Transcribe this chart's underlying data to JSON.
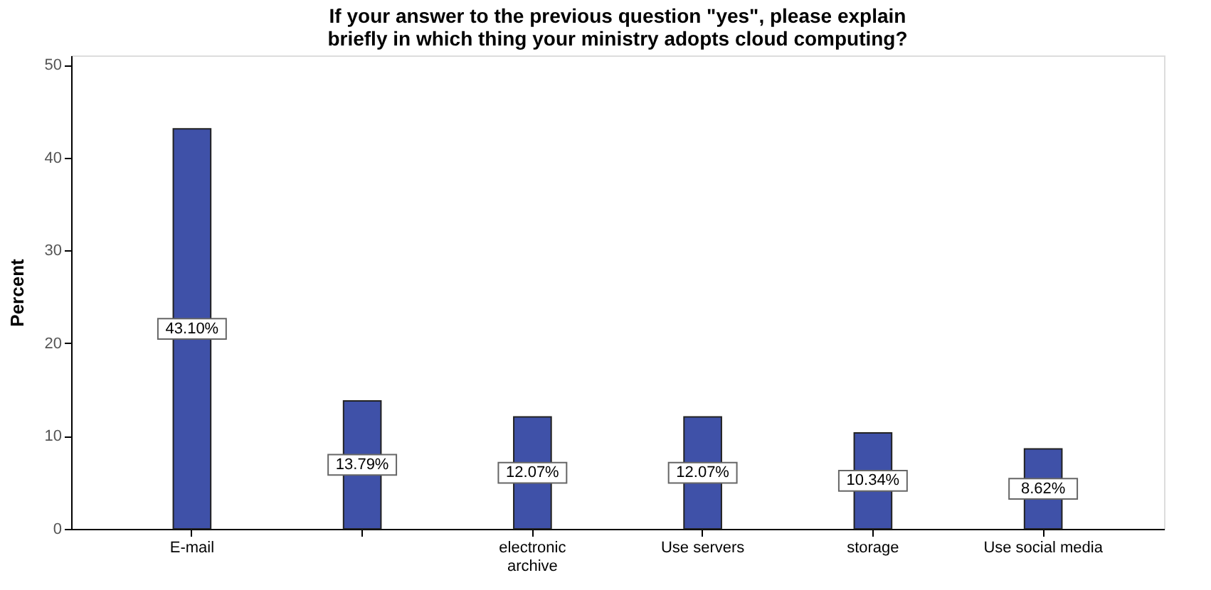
{
  "chart_data": {
    "type": "bar",
    "title": "If your answer to the previous question \"yes\", please explain briefly in which thing your ministry adopts cloud computing?",
    "ylabel": "Percent",
    "categories": [
      "E-mail",
      null,
      "electronic archive",
      "Use servers",
      "storage",
      "Use social media"
    ],
    "values": [
      43.1,
      13.79,
      12.07,
      12.07,
      10.34,
      8.62
    ],
    "value_labels": [
      "43.10%",
      "13.79%",
      "12.07%",
      "12.07%",
      "10.34%",
      "8.62%"
    ],
    "color": "#3f51a8",
    "ylim": [
      0,
      51
    ],
    "yticks": [
      0,
      10,
      20,
      30,
      40,
      50
    ],
    "grid": false
  }
}
